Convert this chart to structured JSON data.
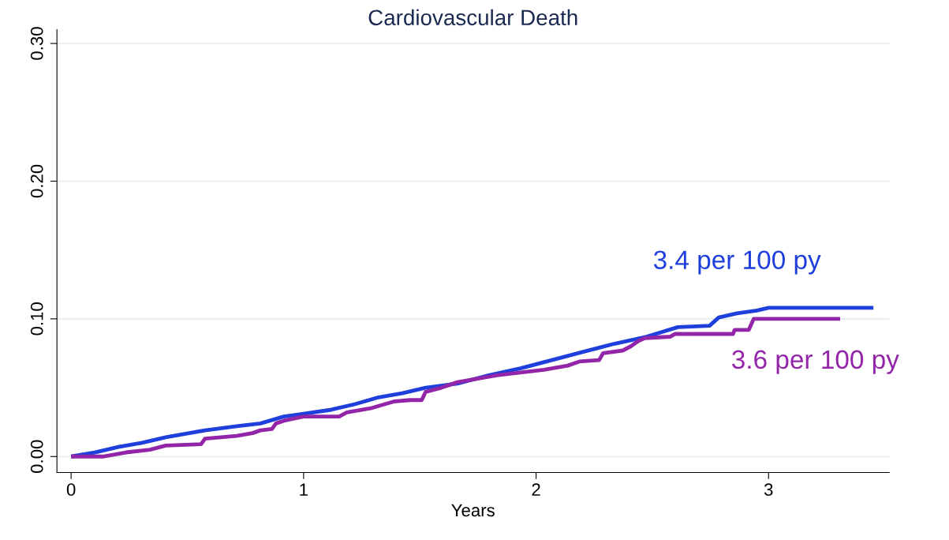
{
  "chart_data": {
    "type": "line",
    "title": "Cardiovascular Death",
    "xlabel": "Years",
    "series": [
      {
        "color": "#1f3fdc",
        "x": [
          0,
          0.102,
          0.203,
          0.305,
          0.407,
          0.508,
          0.576,
          0.712,
          0.814,
          0.915,
          1.0,
          1.119,
          1.22,
          1.322,
          1.424,
          1.525,
          1.661,
          1.797,
          1.932,
          2.068,
          2.203,
          2.339,
          2.475,
          2.61,
          2.746,
          2.786,
          2.864,
          2.949,
          3.0,
          3.451
        ],
        "values": [
          0,
          0.003,
          0.007,
          0.01,
          0.014,
          0.017,
          0.019,
          0.022,
          0.024,
          0.029,
          0.031,
          0.034,
          0.038,
          0.043,
          0.046,
          0.05,
          0.053,
          0.059,
          0.064,
          0.07,
          0.076,
          0.082,
          0.087,
          0.094,
          0.095,
          0.101,
          0.104,
          0.106,
          0.108,
          0.108
        ]
      },
      {
        "color": "#9326a8",
        "x": [
          0,
          0.136,
          0.237,
          0.339,
          0.407,
          0.559,
          0.576,
          0.712,
          0.78,
          0.814,
          0.864,
          0.881,
          0.915,
          1.0,
          1.153,
          1.186,
          1.288,
          1.39,
          1.458,
          1.508,
          1.525,
          1.593,
          1.627,
          1.661,
          1.729,
          1.831,
          1.932,
          2.034,
          2.136,
          2.186,
          2.271,
          2.288,
          2.373,
          2.407,
          2.441,
          2.468,
          2.576,
          2.597,
          2.847,
          2.854,
          2.915,
          2.936,
          3.308
        ],
        "values": [
          0,
          0,
          0.003,
          0.005,
          0.008,
          0.009,
          0.013,
          0.015,
          0.017,
          0.019,
          0.02,
          0.024,
          0.026,
          0.029,
          0.029,
          0.032,
          0.035,
          0.04,
          0.041,
          0.041,
          0.047,
          0.05,
          0.052,
          0.054,
          0.056,
          0.059,
          0.061,
          0.063,
          0.066,
          0.069,
          0.07,
          0.075,
          0.077,
          0.08,
          0.084,
          0.086,
          0.087,
          0.089,
          0.089,
          0.092,
          0.092,
          0.1,
          0.1
        ]
      }
    ],
    "annotations": [
      "3.4 per 100 py",
      "3.6 per 100 py"
    ],
    "xlim": [
      -0.061,
      3.519
    ],
    "ylim": [
      -0.0116,
      0.31
    ],
    "xticks": [
      0,
      1,
      2,
      3
    ],
    "yticks": [
      {
        "value": 0,
        "label": "0.00"
      },
      {
        "value": 0.1,
        "label": "0.10"
      },
      {
        "value": 0.2,
        "label": "0.20"
      },
      {
        "value": 0.3,
        "label": "0.30"
      }
    ],
    "grid": "y",
    "legend": false
  }
}
